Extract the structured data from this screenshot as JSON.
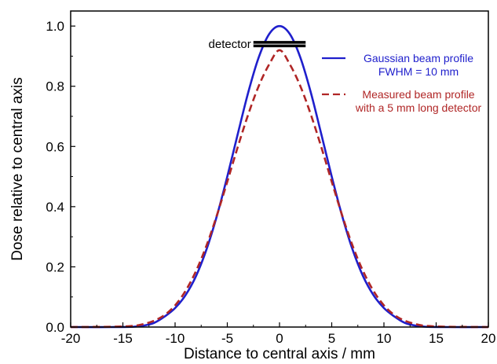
{
  "chart_data": {
    "type": "line",
    "xlabel": "Distance to central axis / mm",
    "ylabel": "Dose relative to central axis",
    "xlim": [
      -20,
      20
    ],
    "ylim": [
      0,
      1.05
    ],
    "x_ticks": [
      -20,
      -15,
      -10,
      -5,
      0,
      5,
      10,
      15,
      20
    ],
    "x_tick_labels": [
      "-20",
      "-15",
      "-10",
      "-5",
      "0",
      "5",
      "10",
      "15",
      "20"
    ],
    "y_ticks": [
      0,
      0.2,
      0.4,
      0.6,
      0.8,
      1.0
    ],
    "y_tick_labels": [
      "0.0",
      "0.2",
      "0.4",
      "0.6",
      "0.8",
      "1.0"
    ],
    "grid": false,
    "legend_position": "top-right",
    "series": [
      {
        "name": "Gaussian beam profile\nFWHM = 10 mm",
        "color": "#1f1fcc",
        "style": "solid",
        "x": [
          -20,
          -16,
          -14,
          -13,
          -12,
          -11,
          -10,
          -9,
          -8,
          -7,
          -6,
          -5,
          -4,
          -3,
          -2,
          -1,
          0,
          1,
          2,
          3,
          4,
          5,
          6,
          7,
          8,
          9,
          10,
          11,
          12,
          13,
          14,
          16,
          20
        ],
        "y": [
          0.0,
          0.0,
          0.001,
          0.005,
          0.014,
          0.035,
          0.063,
          0.106,
          0.169,
          0.257,
          0.369,
          0.5,
          0.641,
          0.779,
          0.895,
          0.973,
          1.0,
          0.973,
          0.895,
          0.779,
          0.641,
          0.5,
          0.369,
          0.257,
          0.169,
          0.106,
          0.063,
          0.035,
          0.014,
          0.005,
          0.001,
          0.0,
          0.0
        ]
      },
      {
        "name": "Measured beam profile\nwith a 5 mm long detector",
        "color": "#b02626",
        "style": "dashed",
        "x": [
          -20,
          -16,
          -14,
          -13,
          -12,
          -11,
          -10,
          -9,
          -8,
          -7,
          -6,
          -5,
          -4,
          -3,
          -2,
          -1,
          0,
          1,
          2,
          3,
          4,
          5,
          6,
          7,
          8,
          9,
          10,
          11,
          12,
          13,
          14,
          16,
          20
        ],
        "y": [
          0.0,
          0.001,
          0.004,
          0.01,
          0.021,
          0.04,
          0.072,
          0.12,
          0.186,
          0.27,
          0.371,
          0.483,
          0.598,
          0.706,
          0.8,
          0.872,
          0.92,
          0.872,
          0.8,
          0.706,
          0.598,
          0.483,
          0.371,
          0.27,
          0.186,
          0.12,
          0.072,
          0.04,
          0.021,
          0.01,
          0.004,
          0.001,
          0.0
        ]
      }
    ],
    "annotations": [
      {
        "text": "detector",
        "x_start": -2.5,
        "x_end": 2.5,
        "y": 0.94
      }
    ]
  }
}
